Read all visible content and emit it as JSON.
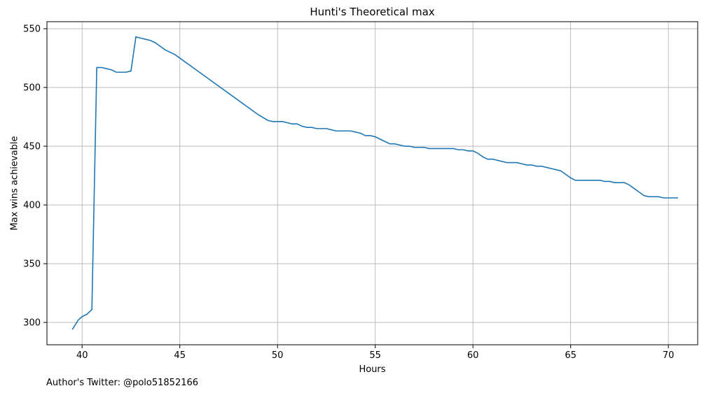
{
  "chart_data": {
    "type": "line",
    "title": "Hunti's Theoretical max",
    "xlabel": "Hours",
    "ylabel": "Max wins achievable",
    "xlim": [
      38.2,
      71.5
    ],
    "ylim": [
      281,
      556
    ],
    "xticks": [
      40,
      45,
      50,
      55,
      60,
      65,
      70
    ],
    "yticks": [
      300,
      350,
      400,
      450,
      500,
      550
    ],
    "grid": true,
    "line_color": "#1f77b4",
    "series": [
      {
        "x": [
          39.5,
          39.8,
          40.0,
          40.25,
          40.5,
          40.75,
          41.0,
          41.25,
          41.5,
          41.75,
          42.0,
          42.25,
          42.5,
          42.75,
          43.0,
          43.25,
          43.5,
          43.75,
          44.0,
          44.25,
          44.5,
          44.75,
          45.0,
          46.0,
          47.0,
          48.0,
          49.0,
          49.5,
          49.75,
          50.0,
          50.25,
          50.5,
          50.75,
          51.0,
          51.25,
          51.5,
          51.75,
          52.0,
          52.25,
          52.5,
          52.75,
          53.0,
          53.25,
          53.5,
          53.75,
          54.0,
          54.25,
          54.5,
          54.75,
          55.0,
          55.25,
          55.5,
          55.75,
          56.0,
          56.25,
          56.5,
          56.75,
          57.0,
          57.25,
          57.5,
          57.75,
          58.0,
          58.25,
          58.5,
          58.75,
          59.0,
          59.25,
          59.5,
          59.75,
          60.0,
          60.25,
          60.5,
          60.75,
          61.0,
          61.25,
          61.5,
          61.75,
          62.0,
          62.25,
          62.5,
          62.75,
          63.0,
          63.25,
          63.5,
          63.75,
          64.0,
          64.25,
          64.5,
          64.75,
          65.0,
          65.25,
          65.5,
          65.75,
          66.0,
          66.25,
          66.5,
          66.75,
          67.0,
          67.25,
          67.5,
          67.75,
          68.0,
          68.25,
          68.5,
          68.75,
          69.0,
          69.25,
          69.5,
          69.75,
          70.0,
          70.25,
          70.5
        ],
        "y": [
          294,
          302,
          305,
          307,
          311,
          517,
          517,
          516,
          515,
          513,
          513,
          513,
          514,
          543,
          542,
          541,
          540,
          538,
          535,
          532,
          530,
          528,
          525,
          513,
          501,
          489,
          477,
          472,
          471,
          471,
          471,
          470,
          469,
          469,
          467,
          466,
          466,
          465,
          465,
          465,
          464,
          463,
          463,
          463,
          463,
          462,
          461,
          459,
          459,
          458,
          456,
          454,
          452,
          452,
          451,
          450,
          450,
          449,
          449,
          449,
          448,
          448,
          448,
          448,
          448,
          448,
          447,
          447,
          446,
          446,
          444,
          441,
          439,
          439,
          438,
          437,
          436,
          436,
          436,
          435,
          434,
          434,
          433,
          433,
          432,
          431,
          430,
          429,
          426,
          423,
          421,
          421,
          421,
          421,
          421,
          421,
          420,
          420,
          419,
          419,
          419,
          417,
          414,
          411,
          408,
          407,
          407,
          407,
          406,
          406,
          406,
          406
        ]
      }
    ]
  },
  "footer": {
    "author_text": "Author's Twitter: @polo51852166"
  }
}
